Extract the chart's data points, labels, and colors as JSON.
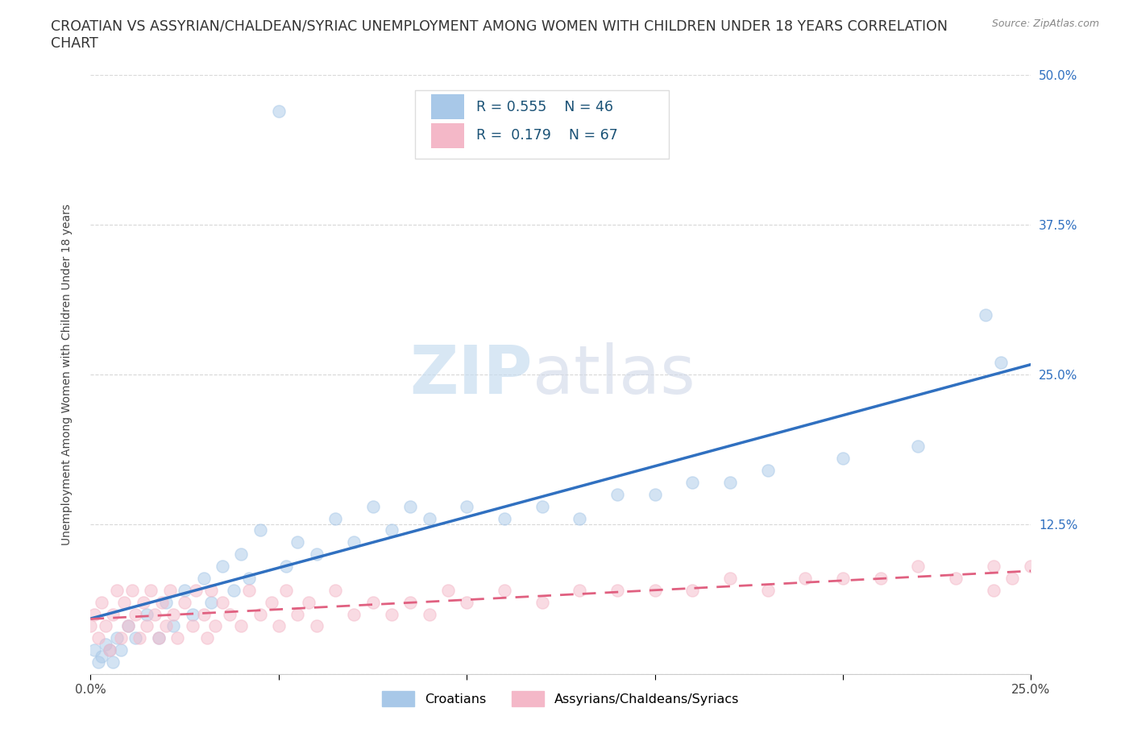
{
  "title_line1": "CROATIAN VS ASSYRIAN/CHALDEAN/SYRIAC UNEMPLOYMENT AMONG WOMEN WITH CHILDREN UNDER 18 YEARS CORRELATION",
  "title_line2": "CHART",
  "source": "Source: ZipAtlas.com",
  "ylabel": "Unemployment Among Women with Children Under 18 years",
  "xlim": [
    0.0,
    0.25
  ],
  "ylim": [
    0.0,
    0.5
  ],
  "xticks": [
    0.0,
    0.05,
    0.1,
    0.15,
    0.2,
    0.25
  ],
  "yticks": [
    0.0,
    0.125,
    0.25,
    0.375,
    0.5
  ],
  "xticklabels": [
    "0.0%",
    "",
    "",
    "",
    "",
    "25.0%"
  ],
  "yticklabels_right": [
    "",
    "12.5%",
    "25.0%",
    "37.5%",
    "50.0%"
  ],
  "blue_color": "#a8c8e8",
  "pink_color": "#f4b8c8",
  "blue_line_color": "#3070c0",
  "pink_line_color": "#e06080",
  "watermark": "ZIPatlas",
  "background_color": "#ffffff",
  "grid_color": "#d8d8d8",
  "title_fontsize": 12.5,
  "source_fontsize": 9,
  "axis_label_fontsize": 10,
  "tick_fontsize": 11,
  "scatter_size": 120,
  "scatter_alpha": 0.5,
  "scatter_linewidth": 1.0,
  "croatian_x": [
    0.001,
    0.002,
    0.003,
    0.004,
    0.005,
    0.006,
    0.007,
    0.008,
    0.01,
    0.012,
    0.015,
    0.018,
    0.02,
    0.022,
    0.025,
    0.027,
    0.03,
    0.032,
    0.035,
    0.038,
    0.04,
    0.042,
    0.045,
    0.05,
    0.052,
    0.055,
    0.06,
    0.065,
    0.07,
    0.075,
    0.08,
    0.085,
    0.09,
    0.1,
    0.11,
    0.12,
    0.13,
    0.14,
    0.15,
    0.16,
    0.17,
    0.18,
    0.2,
    0.22,
    0.238,
    0.242
  ],
  "croatian_y": [
    0.02,
    0.01,
    0.015,
    0.025,
    0.02,
    0.01,
    0.03,
    0.02,
    0.04,
    0.03,
    0.05,
    0.03,
    0.06,
    0.04,
    0.07,
    0.05,
    0.08,
    0.06,
    0.09,
    0.07,
    0.1,
    0.08,
    0.12,
    0.47,
    0.09,
    0.11,
    0.1,
    0.13,
    0.11,
    0.14,
    0.12,
    0.14,
    0.13,
    0.14,
    0.13,
    0.14,
    0.13,
    0.15,
    0.15,
    0.16,
    0.16,
    0.17,
    0.18,
    0.19,
    0.3,
    0.26
  ],
  "assyrian_x": [
    0.0,
    0.001,
    0.002,
    0.003,
    0.004,
    0.005,
    0.006,
    0.007,
    0.008,
    0.009,
    0.01,
    0.011,
    0.012,
    0.013,
    0.014,
    0.015,
    0.016,
    0.017,
    0.018,
    0.019,
    0.02,
    0.021,
    0.022,
    0.023,
    0.025,
    0.027,
    0.028,
    0.03,
    0.031,
    0.032,
    0.033,
    0.035,
    0.037,
    0.04,
    0.042,
    0.045,
    0.048,
    0.05,
    0.052,
    0.055,
    0.058,
    0.06,
    0.065,
    0.07,
    0.075,
    0.08,
    0.085,
    0.09,
    0.095,
    0.1,
    0.11,
    0.12,
    0.13,
    0.14,
    0.15,
    0.16,
    0.17,
    0.18,
    0.19,
    0.2,
    0.21,
    0.22,
    0.23,
    0.24,
    0.24,
    0.245,
    0.25
  ],
  "assyrian_y": [
    0.04,
    0.05,
    0.03,
    0.06,
    0.04,
    0.02,
    0.05,
    0.07,
    0.03,
    0.06,
    0.04,
    0.07,
    0.05,
    0.03,
    0.06,
    0.04,
    0.07,
    0.05,
    0.03,
    0.06,
    0.04,
    0.07,
    0.05,
    0.03,
    0.06,
    0.04,
    0.07,
    0.05,
    0.03,
    0.07,
    0.04,
    0.06,
    0.05,
    0.04,
    0.07,
    0.05,
    0.06,
    0.04,
    0.07,
    0.05,
    0.06,
    0.04,
    0.07,
    0.05,
    0.06,
    0.05,
    0.06,
    0.05,
    0.07,
    0.06,
    0.07,
    0.06,
    0.07,
    0.07,
    0.07,
    0.07,
    0.08,
    0.07,
    0.08,
    0.08,
    0.08,
    0.09,
    0.08,
    0.09,
    0.07,
    0.08,
    0.09
  ],
  "legend_r1": "R = 0.555",
  "legend_n1": "N = 46",
  "legend_r2": "R =  0.179",
  "legend_n2": "N = 67",
  "legend_label1": "Croatians",
  "legend_label2": "Assyrians/Chaldeans/Syriacs"
}
